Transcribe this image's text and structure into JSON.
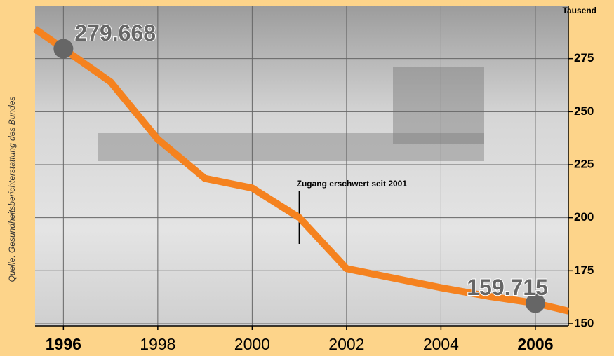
{
  "chart_data": {
    "type": "line",
    "unit_label": "Tausend",
    "source": "Quelle: Gesundheitsberichterstattung des Bundes",
    "annotation": {
      "text": "Zugang erschwert seit 2001",
      "x": 2001
    },
    "x": [
      1995.4,
      1996,
      1997,
      1998,
      1999,
      2000,
      2001,
      2002,
      2003,
      2004,
      2005,
      2006,
      2006.7
    ],
    "series": [
      {
        "color": "#f5821f",
        "values": [
          289,
          279.668,
          264,
          237,
          218.5,
          214,
          200,
          176,
          171.5,
          167,
          163,
          159.715,
          156
        ]
      }
    ],
    "markers": [
      1,
      11
    ],
    "xlim": [
      1995.4,
      2006.7
    ],
    "xticks": [
      1996,
      1998,
      2000,
      2002,
      2004,
      2006
    ],
    "ylim": [
      149,
      300
    ],
    "yticks": [
      150,
      175,
      200,
      225,
      250,
      275
    ],
    "grid": true
  }
}
